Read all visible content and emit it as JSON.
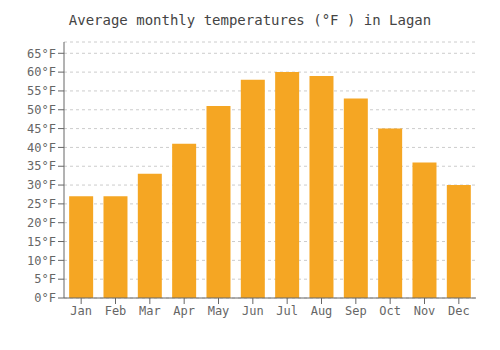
{
  "chart_data": {
    "type": "bar",
    "title": "Average monthly temperatures (°F ) in Lagan",
    "categories": [
      "Jan",
      "Feb",
      "Mar",
      "Apr",
      "May",
      "Jun",
      "Jul",
      "Aug",
      "Sep",
      "Oct",
      "Nov",
      "Dec"
    ],
    "values": [
      27,
      27,
      33,
      41,
      51,
      58,
      60,
      59,
      53,
      45,
      36,
      30
    ],
    "color": "#F5A623",
    "ylim": [
      0,
      68
    ],
    "yticks": [
      {
        "value": 0,
        "label": "0°F"
      },
      {
        "value": 5,
        "label": "5°F"
      },
      {
        "value": 10,
        "label": "10°F"
      },
      {
        "value": 15,
        "label": "15°F"
      },
      {
        "value": 20,
        "label": "20°F"
      },
      {
        "value": 25,
        "label": "25°F"
      },
      {
        "value": 30,
        "label": "30°F"
      },
      {
        "value": 35,
        "label": "35°F"
      },
      {
        "value": 40,
        "label": "40°F"
      },
      {
        "value": 45,
        "label": "45°F"
      },
      {
        "value": 50,
        "label": "50°F"
      },
      {
        "value": 55,
        "label": "55°F"
      },
      {
        "value": 60,
        "label": "60°F"
      },
      {
        "value": 65,
        "label": "65°F"
      }
    ],
    "grid": true
  }
}
